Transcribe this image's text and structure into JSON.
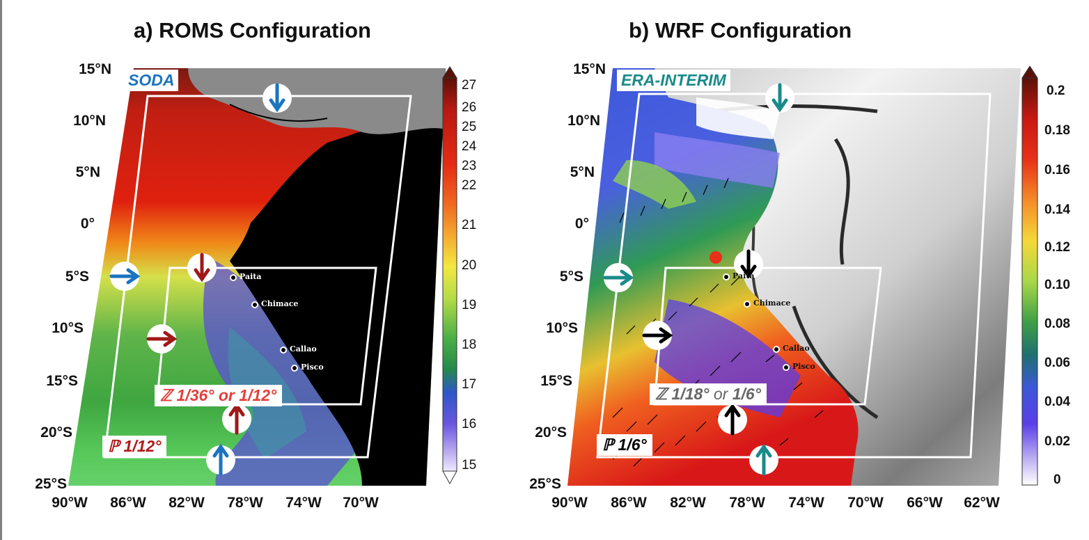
{
  "panels": {
    "a": {
      "title": "a) ROMS Configuration",
      "source": "SODA",
      "res_outer": "ℙ 1/12°",
      "res_inner": "ℤ 1/36° or 1/12°",
      "cities": [
        "Paita",
        "Chimace",
        "Callao",
        "Pisco"
      ],
      "colorbar": {
        "labels": [
          "27",
          "26",
          "25",
          "24",
          "23",
          "22",
          "21",
          "20",
          "19",
          "18",
          "17",
          "16",
          "15"
        ],
        "range": [
          15,
          27
        ]
      }
    },
    "b": {
      "title": "b) WRF Configuration",
      "source": "ERA-INTERIM",
      "res_outer": "ℙ 1/6°",
      "res_inner_z": "ℤ 1/18°",
      "res_inner_or": "or",
      "res_inner_alt": "1/6°",
      "cities": [
        "Paita",
        "Chimace",
        "Callao",
        "Pisco"
      ],
      "colorbar": {
        "labels": [
          "0.2",
          "0.18",
          "0.16",
          "0.14",
          "0.12",
          "0.10",
          "0.08",
          "0.06",
          "0.04",
          "0.02",
          "0"
        ],
        "range": [
          0,
          0.2
        ]
      }
    }
  },
  "axes": {
    "lat_labels": [
      "15°N",
      "10°N",
      "5°N",
      "0°",
      "5°S",
      "10°S",
      "15°S",
      "20°S",
      "25°S"
    ],
    "lon_labels_a": [
      "90°W",
      "86°W",
      "82°W",
      "78°W",
      "74°W",
      "70°W"
    ],
    "lon_labels_b": [
      "90°W",
      "86°W",
      "82°W",
      "78°W",
      "74°W",
      "70°W",
      "66°W",
      "62°W"
    ]
  },
  "colors": {
    "soda_blue": "#1b74c0",
    "era_teal": "#1a8a8a",
    "inner_red": "#e2403a",
    "outer_red": "#b01a1a",
    "arrow_red": "#a01818",
    "arrow_black": "#000000",
    "inner_gray": "#666666"
  },
  "icons": {
    "boundary_arrow": "arrow-icon"
  }
}
